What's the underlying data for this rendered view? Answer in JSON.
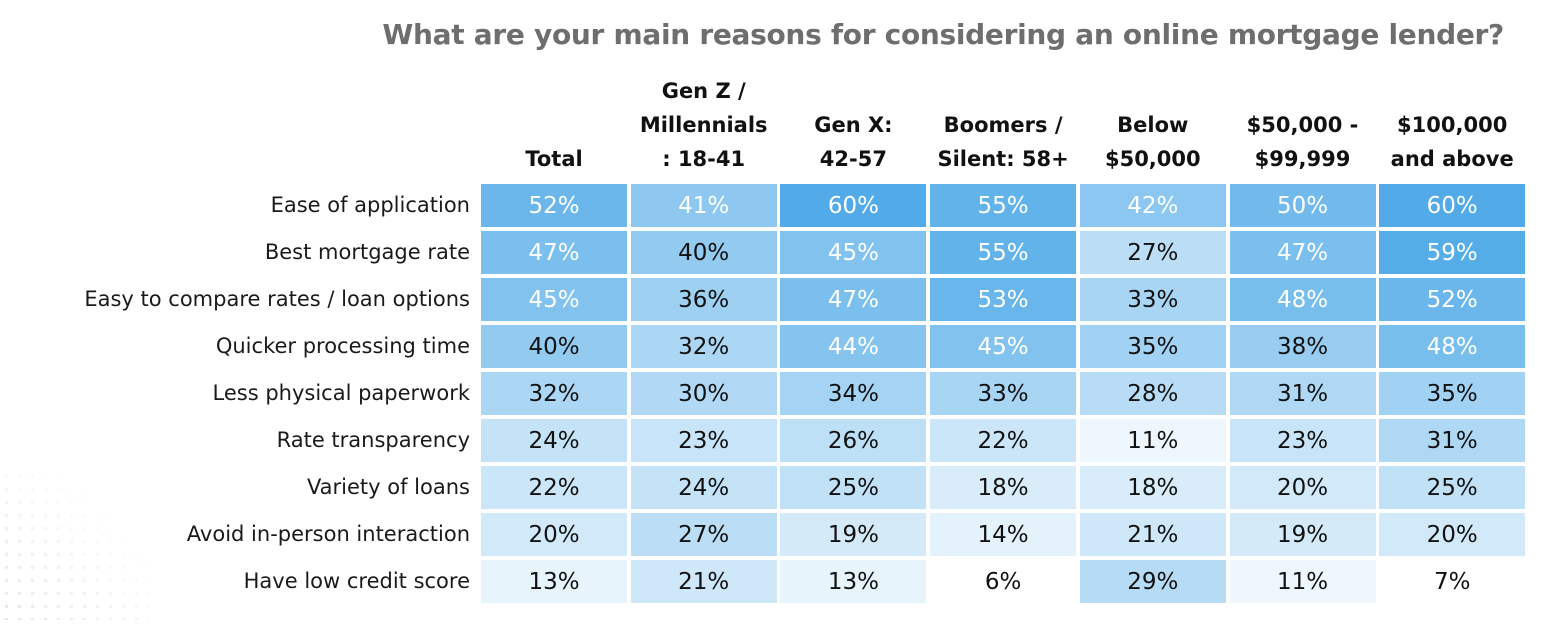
{
  "chart_data": {
    "type": "table",
    "title": "What are your main reasons for considering an online mortgage lender?",
    "columns": [
      "Total",
      "Gen Z /\nMillennials\n: 18-41",
      "Gen X:\n42-57",
      "Boomers /\nSilent: 58+",
      "Below\n$50,000",
      "$50,000 -\n$99,999",
      "$100,000\nand above"
    ],
    "rows": [
      {
        "label": "Ease of application",
        "values": [
          52,
          41,
          60,
          55,
          42,
          50,
          60
        ]
      },
      {
        "label": "Best mortgage rate",
        "values": [
          47,
          40,
          45,
          55,
          27,
          47,
          59
        ]
      },
      {
        "label": "Easy to compare rates / loan options",
        "values": [
          45,
          36,
          47,
          53,
          33,
          48,
          52
        ]
      },
      {
        "label": "Quicker processing time",
        "values": [
          40,
          32,
          44,
          45,
          35,
          38,
          48
        ]
      },
      {
        "label": "Less physical paperwork",
        "values": [
          32,
          30,
          34,
          33,
          28,
          31,
          35
        ]
      },
      {
        "label": "Rate transparency",
        "values": [
          24,
          23,
          26,
          22,
          11,
          23,
          31
        ]
      },
      {
        "label": "Variety of loans",
        "values": [
          22,
          24,
          25,
          18,
          18,
          20,
          25
        ]
      },
      {
        "label": "Avoid in-person interaction",
        "values": [
          20,
          27,
          19,
          14,
          21,
          19,
          20
        ]
      },
      {
        "label": "Have low credit score",
        "values": [
          13,
          21,
          13,
          6,
          29,
          11,
          7
        ]
      }
    ],
    "value_suffix": "%",
    "color_scale": {
      "low": "#ffffff",
      "high": "#52abe8"
    }
  }
}
